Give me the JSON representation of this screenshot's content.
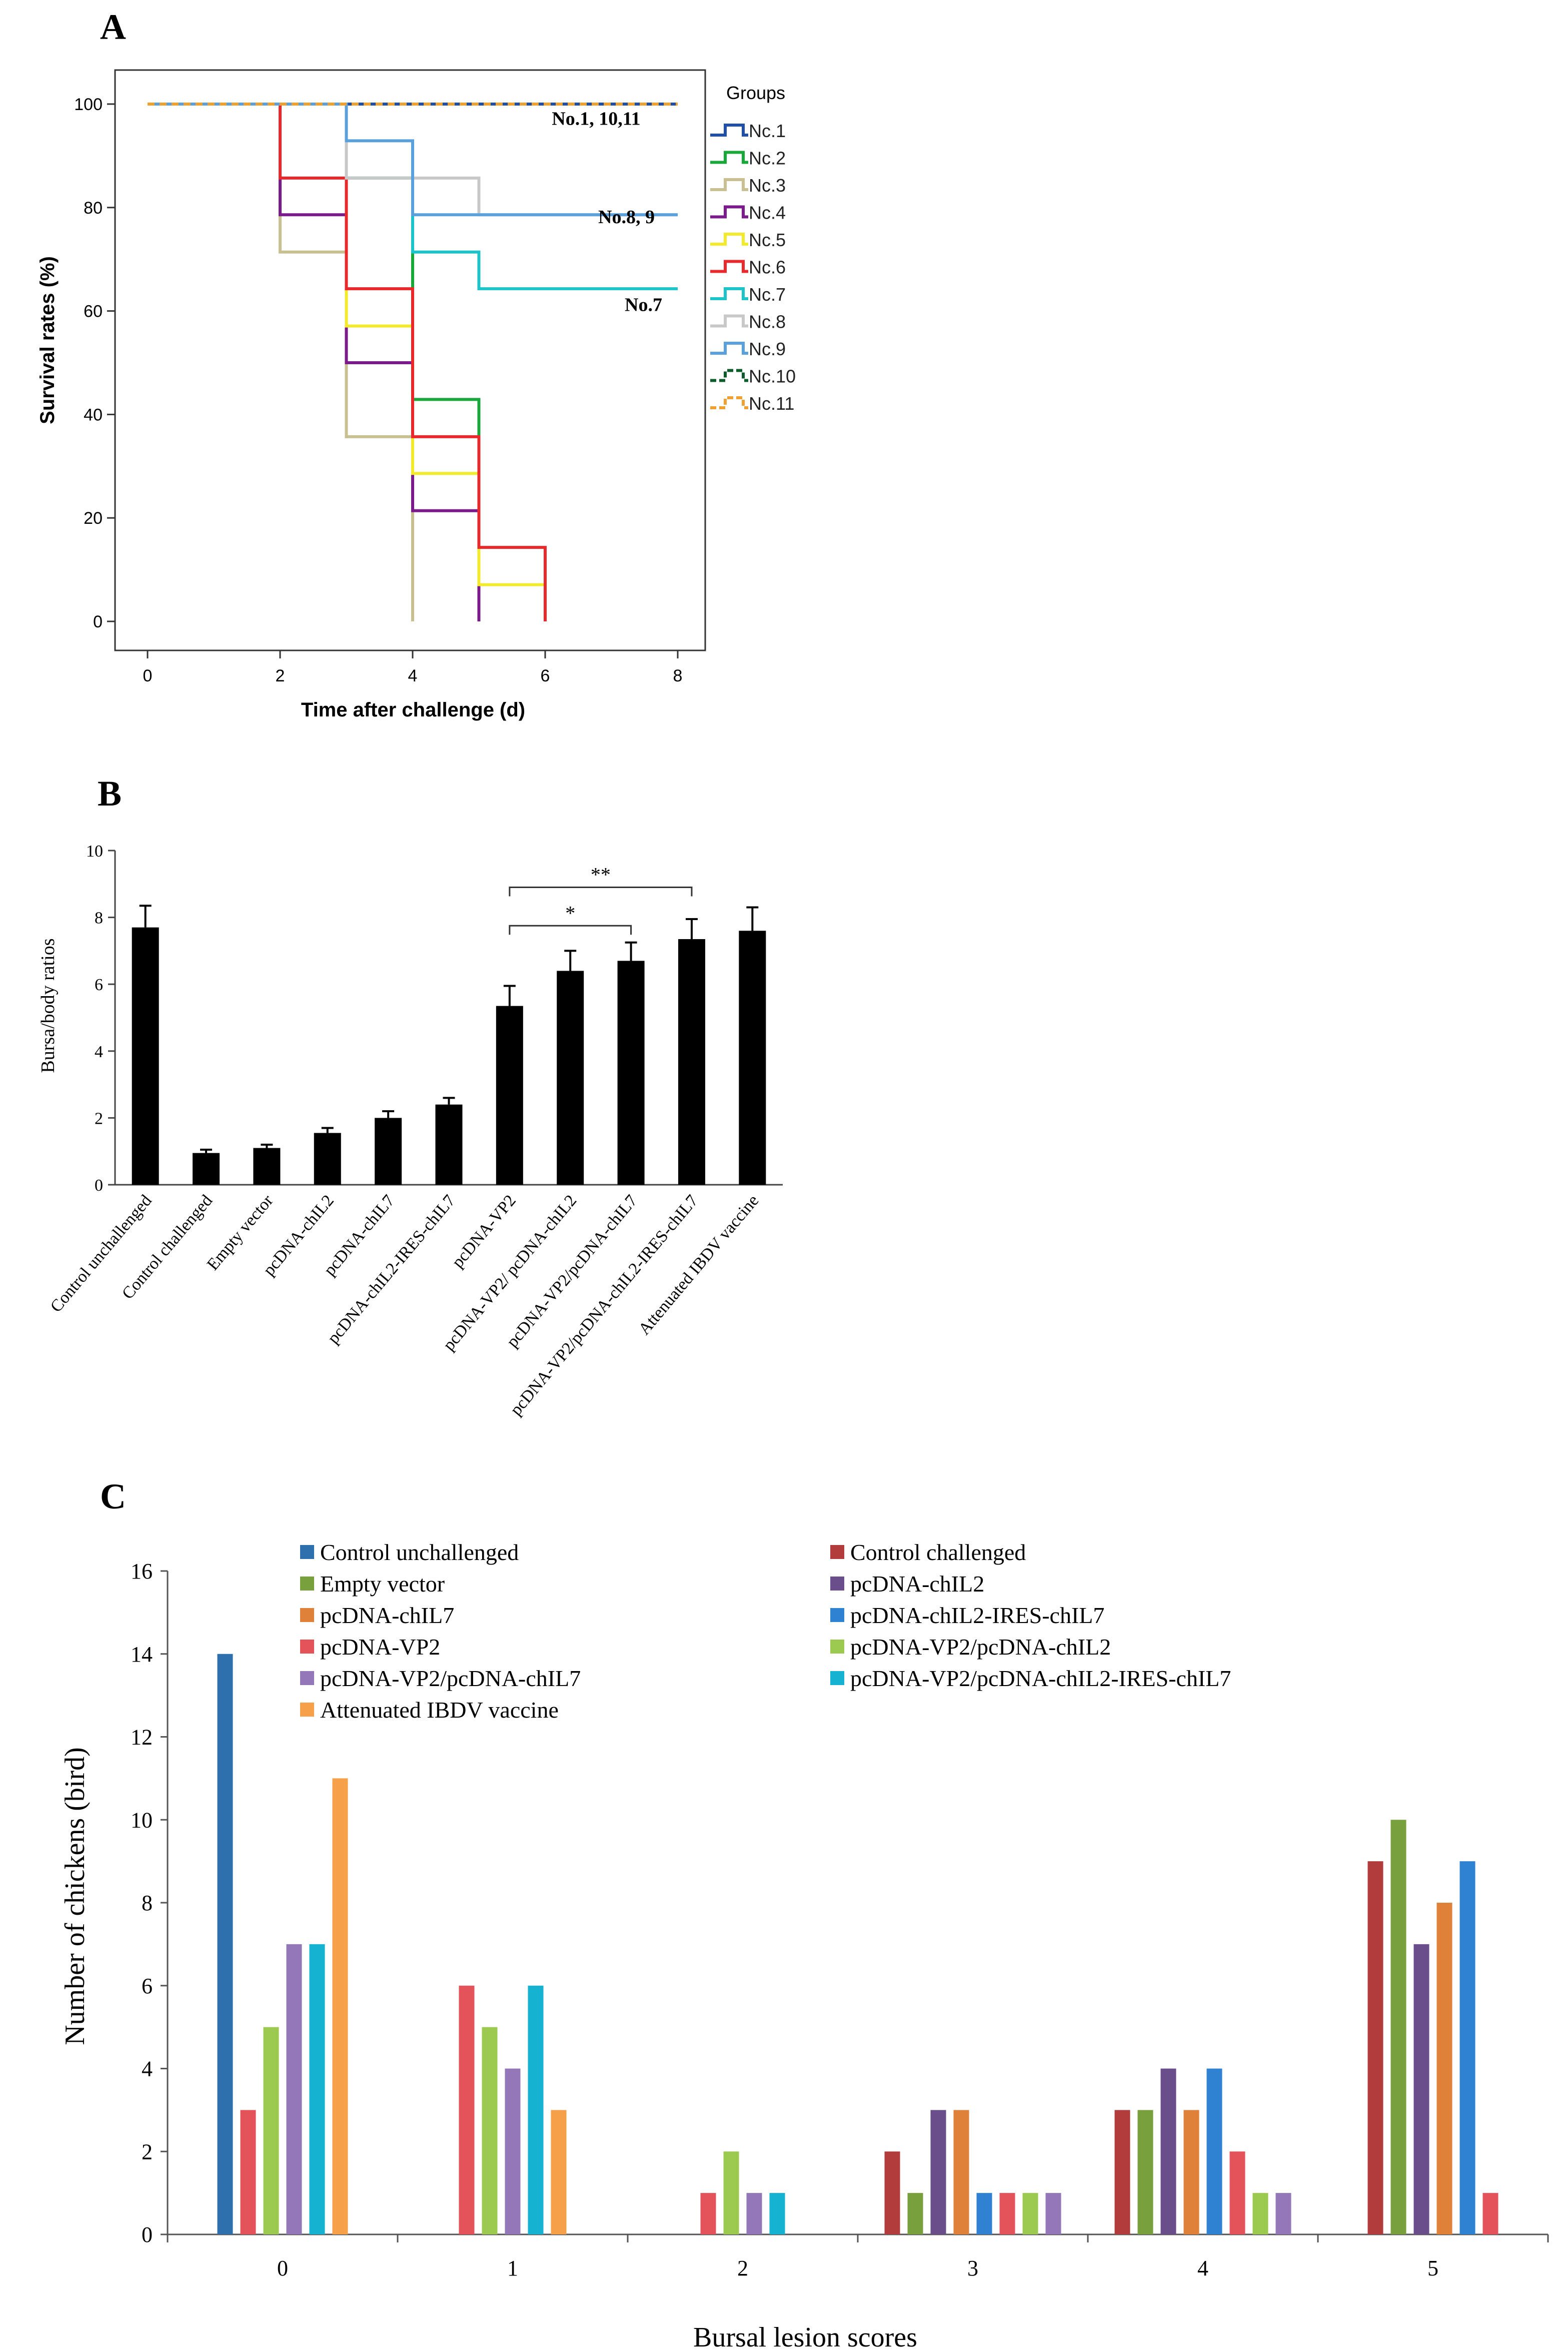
{
  "chart_data": [
    {
      "panel": "A",
      "type": "line",
      "xlabel": "Time after challenge (d)",
      "ylabel": "Survival rates (%)",
      "xlim": [
        0,
        8
      ],
      "ylim": [
        0,
        100
      ],
      "xticks": [
        0,
        2,
        4,
        6,
        8
      ],
      "yticks": [
        0,
        20,
        40,
        60,
        80,
        100
      ],
      "legend_title": "Groups",
      "legend_position": "right",
      "annotations": [
        {
          "text": "No.1, 10,11",
          "x": 6.1,
          "y": 96
        },
        {
          "text": "No.8, 9",
          "x": 6.8,
          "y": 77
        },
        {
          "text": "No.7",
          "x": 7.2,
          "y": 60
        }
      ],
      "series": [
        {
          "name": "Nc.1",
          "color": "#1f4fa8",
          "dash": "",
          "steps": [
            [
              0,
              100
            ],
            [
              8,
              100
            ]
          ]
        },
        {
          "name": "Nc.2",
          "color": "#18a83a",
          "dash": "",
          "steps": [
            [
              0,
              100
            ],
            [
              3,
              85.7
            ],
            [
              4,
              42.9
            ],
            [
              5,
              7.1
            ],
            [
              5,
              0
            ]
          ]
        },
        {
          "name": "Nc.3",
          "color": "#c8c090",
          "dash": "",
          "steps": [
            [
              0,
              100
            ],
            [
              2,
              71.4
            ],
            [
              3,
              35.7
            ],
            [
              4,
              0
            ]
          ]
        },
        {
          "name": "Nc.4",
          "color": "#7b1a8a",
          "dash": "",
          "steps": [
            [
              0,
              100
            ],
            [
              2,
              78.6
            ],
            [
              3,
              50
            ],
            [
              4,
              21.4
            ],
            [
              5,
              0
            ]
          ]
        },
        {
          "name": "Nc.5",
          "color": "#f2ea2a",
          "dash": "",
          "steps": [
            [
              0,
              100
            ],
            [
              3,
              57.1
            ],
            [
              4,
              28.6
            ],
            [
              5,
              7.1
            ],
            [
              6,
              0
            ]
          ]
        },
        {
          "name": "Nc.6",
          "color": "#e8282a",
          "dash": "",
          "steps": [
            [
              0,
              100
            ],
            [
              2,
              85.7
            ],
            [
              3,
              64.3
            ],
            [
              4,
              35.7
            ],
            [
              5,
              14.3
            ],
            [
              6,
              0
            ]
          ]
        },
        {
          "name": "Nc.7",
          "color": "#1cc3c8",
          "dash": "",
          "steps": [
            [
              0,
              100
            ],
            [
              3,
              85.7
            ],
            [
              4,
              71.4
            ],
            [
              5,
              64.3
            ],
            [
              8,
              64.3
            ]
          ]
        },
        {
          "name": "Nc.8",
          "color": "#c8c8c8",
          "dash": "",
          "steps": [
            [
              0,
              100
            ],
            [
              3,
              85.7
            ],
            [
              5,
              78.6
            ],
            [
              8,
              78.6
            ]
          ]
        },
        {
          "name": "Nc.9",
          "color": "#5aa0dc",
          "dash": "",
          "steps": [
            [
              0,
              100
            ],
            [
              3,
              92.9
            ],
            [
              4,
              78.6
            ],
            [
              8,
              78.6
            ]
          ]
        },
        {
          "name": "Nc.10",
          "color": "#0b5c2a",
          "dash": "14,10",
          "steps": [
            [
              0,
              100
            ],
            [
              8,
              100
            ]
          ]
        },
        {
          "name": "Nc.11",
          "color": "#f0a030",
          "dash": "14,10",
          "steps": [
            [
              0,
              100
            ],
            [
              8,
              100
            ]
          ]
        }
      ]
    },
    {
      "panel": "B",
      "type": "bar",
      "xlabel": "",
      "ylabel": "Bursa/body ratios",
      "ylim": [
        0,
        10
      ],
      "yticks": [
        0,
        2,
        4,
        6,
        8,
        10
      ],
      "categories": [
        "Control unchallenged",
        "Control challenged",
        "Empty vector",
        "pcDNA-chIL2",
        "pcDNA-chIL7",
        "pcDNA-chIL2-IRES-chIL7",
        "pcDNA-VP2",
        "pcDNA-VP2/ pcDNA-chIL2",
        "pcDNA-VP2/pcDNA-chIL7",
        "pcDNA-VP2/pcDNA-chIL2-IRES-chIL7",
        "Attenuated IBDV vaccine"
      ],
      "values": [
        7.7,
        0.95,
        1.1,
        1.55,
        2.0,
        2.4,
        5.35,
        6.4,
        6.7,
        7.35,
        7.6
      ],
      "errors": [
        0.65,
        0.1,
        0.1,
        0.15,
        0.2,
        0.2,
        0.6,
        0.6,
        0.55,
        0.6,
        0.7
      ],
      "brackets": [
        {
          "from": 6,
          "to": 8,
          "label": "*",
          "y": 7.75
        },
        {
          "from": 6,
          "to": 9,
          "label": "**",
          "y": 8.9
        }
      ]
    },
    {
      "panel": "C",
      "type": "bar",
      "xlabel": "Bursal lesion scores",
      "ylabel": "Number of chickens (bird)",
      "categories": [
        "0",
        "1",
        "2",
        "3",
        "4",
        "5"
      ],
      "ylim": [
        0,
        16
      ],
      "yticks": [
        0,
        2,
        4,
        6,
        8,
        10,
        12,
        14,
        16
      ],
      "legend_position": "top",
      "series": [
        {
          "name": "Control unchallenged",
          "color": "#2e6fae",
          "values": [
            14,
            0,
            0,
            0,
            0,
            0
          ]
        },
        {
          "name": "Control challenged",
          "color": "#b23b3b",
          "values": [
            0,
            0,
            0,
            2,
            3,
            9
          ]
        },
        {
          "name": "Empty vector",
          "color": "#78a13d",
          "values": [
            0,
            0,
            0,
            1,
            3,
            10
          ]
        },
        {
          "name": "pcDNA-chIL2",
          "color": "#6a4e8c",
          "values": [
            0,
            0,
            0,
            3,
            4,
            7
          ]
        },
        {
          "name": "pcDNA-chIL7",
          "color": "#e0813a",
          "values": [
            0,
            0,
            0,
            3,
            3,
            8
          ]
        },
        {
          "name": "pcDNA-chIL2-IRES-chIL7",
          "color": "#2f82d2",
          "values": [
            0,
            0,
            0,
            1,
            4,
            9
          ]
        },
        {
          "name": "pcDNA-VP2",
          "color": "#e4525a",
          "values": [
            3,
            6,
            1,
            1,
            2,
            1
          ]
        },
        {
          "name": "pcDNA-VP2/pcDNA-chIL2",
          "color": "#9cc94f",
          "values": [
            5,
            5,
            2,
            1,
            1,
            0
          ]
        },
        {
          "name": "pcDNA-VP2/pcDNA-chIL7",
          "color": "#9377b8",
          "values": [
            7,
            4,
            1,
            1,
            1,
            0
          ]
        },
        {
          "name": "pcDNA-VP2/pcDNA-chIL2-IRES-chIL7",
          "color": "#16b2d2",
          "values": [
            7,
            6,
            1,
            0,
            0,
            0
          ]
        },
        {
          "name": "Attenuated IBDV vaccine",
          "color": "#f7a04a",
          "values": [
            11,
            3,
            0,
            0,
            0,
            0
          ]
        }
      ]
    }
  ]
}
